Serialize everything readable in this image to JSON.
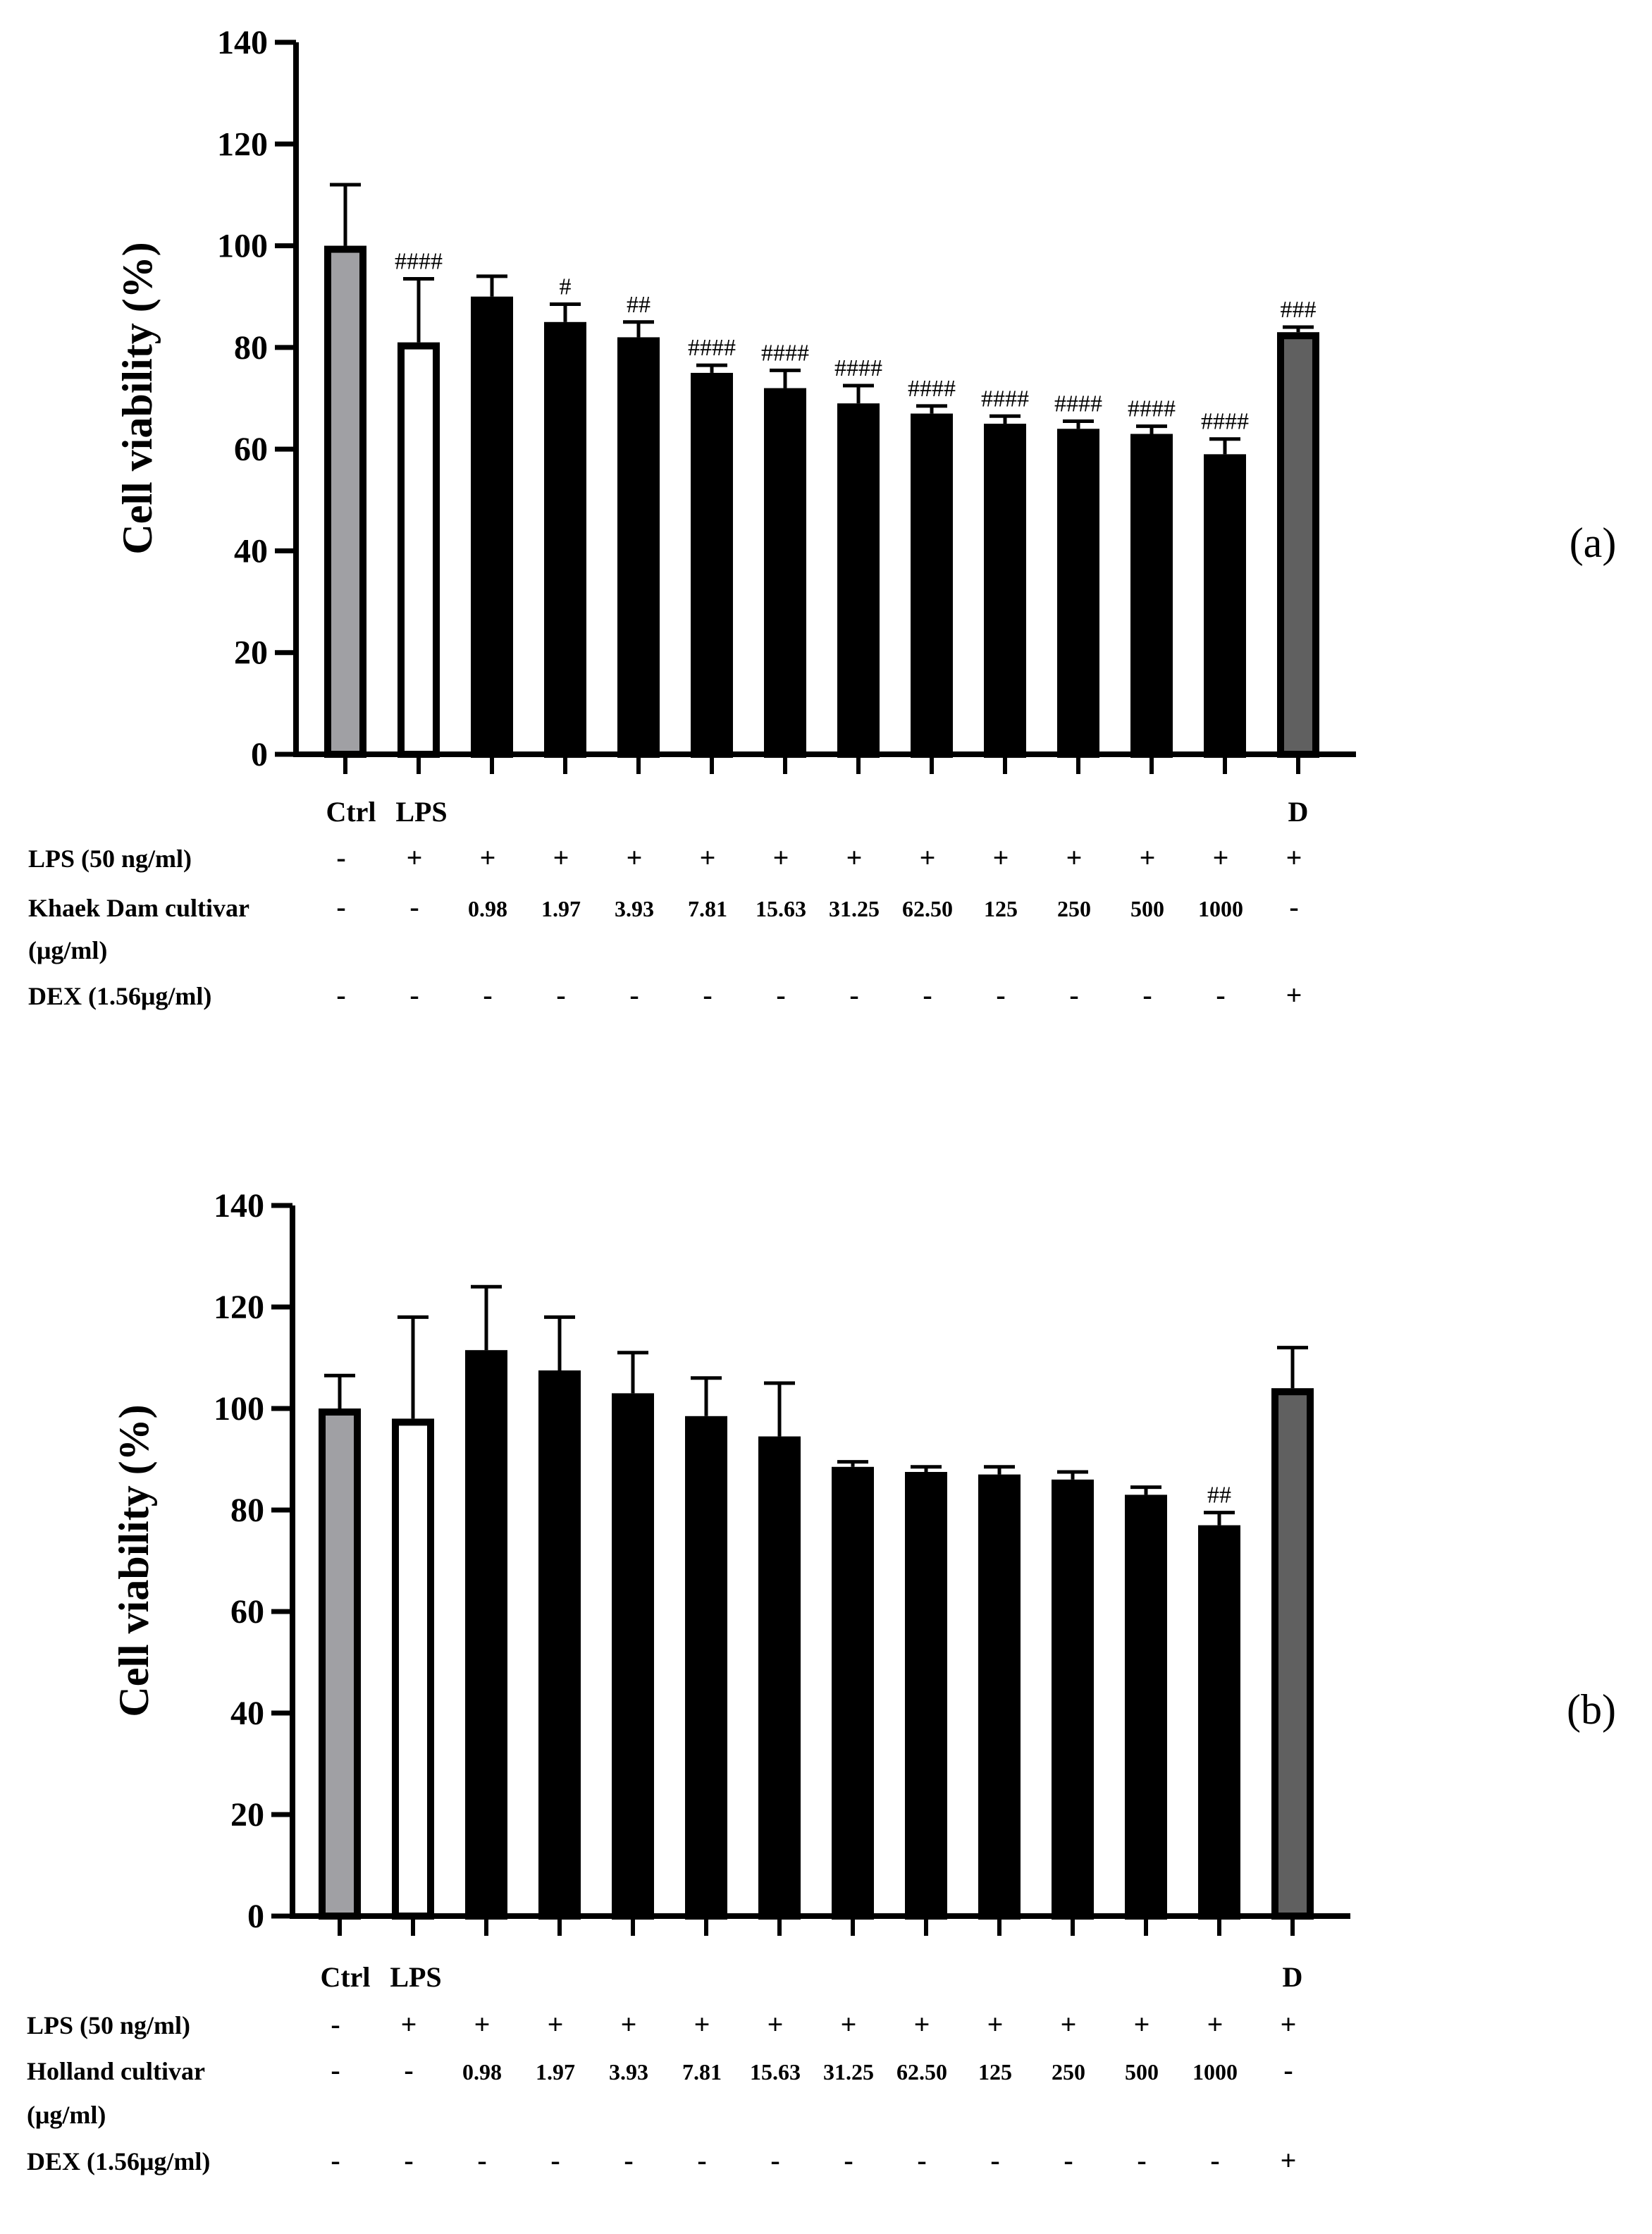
{
  "chart_data": [
    {
      "type": "bar",
      "panel_label": "(a)",
      "ylabel": "Cell viability (%)",
      "ylim": [
        0,
        140
      ],
      "yticks": [
        0,
        20,
        40,
        60,
        80,
        100,
        120,
        140
      ],
      "categories": [
        "Ctrl",
        "LPS",
        "",
        "",
        "",
        "",
        "",
        "",
        "",
        "",
        "",
        "",
        "",
        "D"
      ],
      "values": [
        100,
        81,
        90,
        85,
        82,
        75,
        72,
        69,
        67,
        65,
        64,
        63,
        59,
        83
      ],
      "errors": [
        12,
        12.5,
        4,
        3.5,
        3,
        1.5,
        3.5,
        3.5,
        1.5,
        1.5,
        1.5,
        1.5,
        3,
        1
      ],
      "significance": [
        "",
        "####",
        "",
        "#",
        "##",
        "####",
        "####",
        "####",
        "####",
        "####",
        "####",
        "####",
        "####",
        "###"
      ],
      "bar_colors": [
        "#a0a0a4",
        "#ffffff",
        "#000000",
        "#000000",
        "#000000",
        "#000000",
        "#000000",
        "#000000",
        "#000000",
        "#000000",
        "#000000",
        "#000000",
        "#000000",
        "#606060"
      ],
      "treatment_rows": [
        {
          "label": "LPS (50 ng/ml)",
          "values": [
            "-",
            "+",
            "+",
            "+",
            "+",
            "+",
            "+",
            "+",
            "+",
            "+",
            "+",
            "+",
            "+",
            "+"
          ]
        },
        {
          "label": "Khaek Dam cultivar",
          "label2": "(μg/ml)",
          "values": [
            "-",
            "-",
            "0.98",
            "1.97",
            "3.93",
            "7.81",
            "15.63",
            "31.25",
            "62.50",
            "125",
            "250",
            "500",
            "1000",
            "-"
          ]
        },
        {
          "label": "DEX (1.56μg/ml)",
          "values": [
            "-",
            "-",
            "-",
            "-",
            "-",
            "-",
            "-",
            "-",
            "-",
            "-",
            "-",
            "-",
            "-",
            "+"
          ]
        }
      ]
    },
    {
      "type": "bar",
      "panel_label": "(b)",
      "ylabel": "Cell viability (%)",
      "ylim": [
        0,
        140
      ],
      "yticks": [
        0,
        20,
        40,
        60,
        80,
        100,
        120,
        140
      ],
      "categories": [
        "Ctrl",
        "LPS",
        "",
        "",
        "",
        "",
        "",
        "",
        "",
        "",
        "",
        "",
        "",
        "D"
      ],
      "values": [
        100,
        98,
        111.5,
        107.5,
        103,
        98.5,
        94.5,
        88.5,
        87.5,
        87,
        86,
        83,
        77,
        104
      ],
      "errors": [
        6.5,
        20,
        12.5,
        10.5,
        8,
        7.5,
        10.5,
        1,
        1,
        1.5,
        1.5,
        1.5,
        2.5,
        8
      ],
      "significance": [
        "",
        "",
        "",
        "",
        "",
        "",
        "",
        "",
        "",
        "",
        "",
        "",
        "##",
        ""
      ],
      "bar_colors": [
        "#a0a0a4",
        "#ffffff",
        "#000000",
        "#000000",
        "#000000",
        "#000000",
        "#000000",
        "#000000",
        "#000000",
        "#000000",
        "#000000",
        "#000000",
        "#000000",
        "#606060"
      ],
      "treatment_rows": [
        {
          "label": "LPS (50 ng/ml)",
          "values": [
            "-",
            "+",
            "+",
            "+",
            "+",
            "+",
            "+",
            "+",
            "+",
            "+",
            "+",
            "+",
            "+",
            "+"
          ]
        },
        {
          "label": "Holland cultivar",
          "label2": "(μg/ml)",
          "values": [
            "-",
            "-",
            "0.98",
            "1.97",
            "3.93",
            "7.81",
            "15.63",
            "31.25",
            "62.50",
            "125",
            "250",
            "500",
            "1000",
            "-"
          ]
        },
        {
          "label": "DEX (1.56μg/ml)",
          "values": [
            "-",
            "-",
            "-",
            "-",
            "-",
            "-",
            "-",
            "-",
            "-",
            "-",
            "-",
            "-",
            "-",
            "+"
          ]
        }
      ]
    }
  ]
}
